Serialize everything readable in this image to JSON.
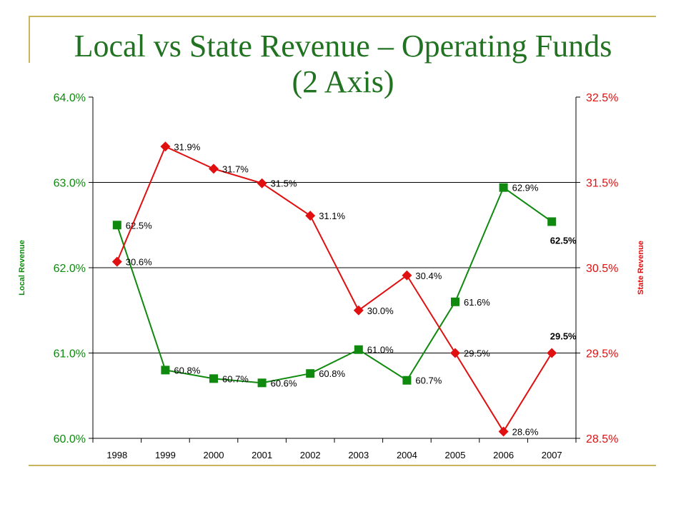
{
  "title_line1": "Local vs State Revenue – Operating Funds",
  "title_line2": "(2 Axis)",
  "colors": {
    "local": "#0f8a0f",
    "state": "#e01010",
    "title": "#217221",
    "accent": "#c9b65a"
  },
  "chart_data": {
    "type": "line",
    "categories": [
      "1998",
      "1999",
      "2000",
      "2001",
      "2002",
      "2003",
      "2004",
      "2005",
      "2006",
      "2007"
    ],
    "series": [
      {
        "name": "Local Revenue",
        "axis": "left",
        "marker": "square",
        "values": [
          62.5,
          60.8,
          60.7,
          60.65,
          60.76,
          61.04,
          60.68,
          61.6,
          62.94,
          62.54
        ],
        "labels": [
          "62.5%",
          "60.8%",
          "60.7%",
          "60.6%",
          "60.8%",
          "61.0%",
          "60.7%",
          "61.6%",
          "62.9%",
          "62.5%"
        ]
      },
      {
        "name": "State Revenue",
        "axis": "right",
        "marker": "diamond",
        "values": [
          30.57,
          31.92,
          31.66,
          31.49,
          31.11,
          30.0,
          30.41,
          29.5,
          28.58,
          29.5
        ],
        "labels": [
          "30.6%",
          "31.9%",
          "31.7%",
          "31.5%",
          "31.1%",
          "30.0%",
          "30.4%",
          "29.5%",
          "28.6%",
          "29.5%"
        ]
      }
    ],
    "y_left": {
      "label": "Local Revenue",
      "ylim": [
        60,
        64
      ],
      "ticks": [
        "60.0%",
        "61.0%",
        "62.0%",
        "63.0%",
        "64.0%"
      ]
    },
    "y_right": {
      "label": "State Revenue",
      "ylim": [
        28.5,
        32.5
      ],
      "ticks": [
        "28.5%",
        "29.5%",
        "30.5%",
        "31.5%",
        "32.5%"
      ]
    },
    "grid": true,
    "legend": "none"
  }
}
